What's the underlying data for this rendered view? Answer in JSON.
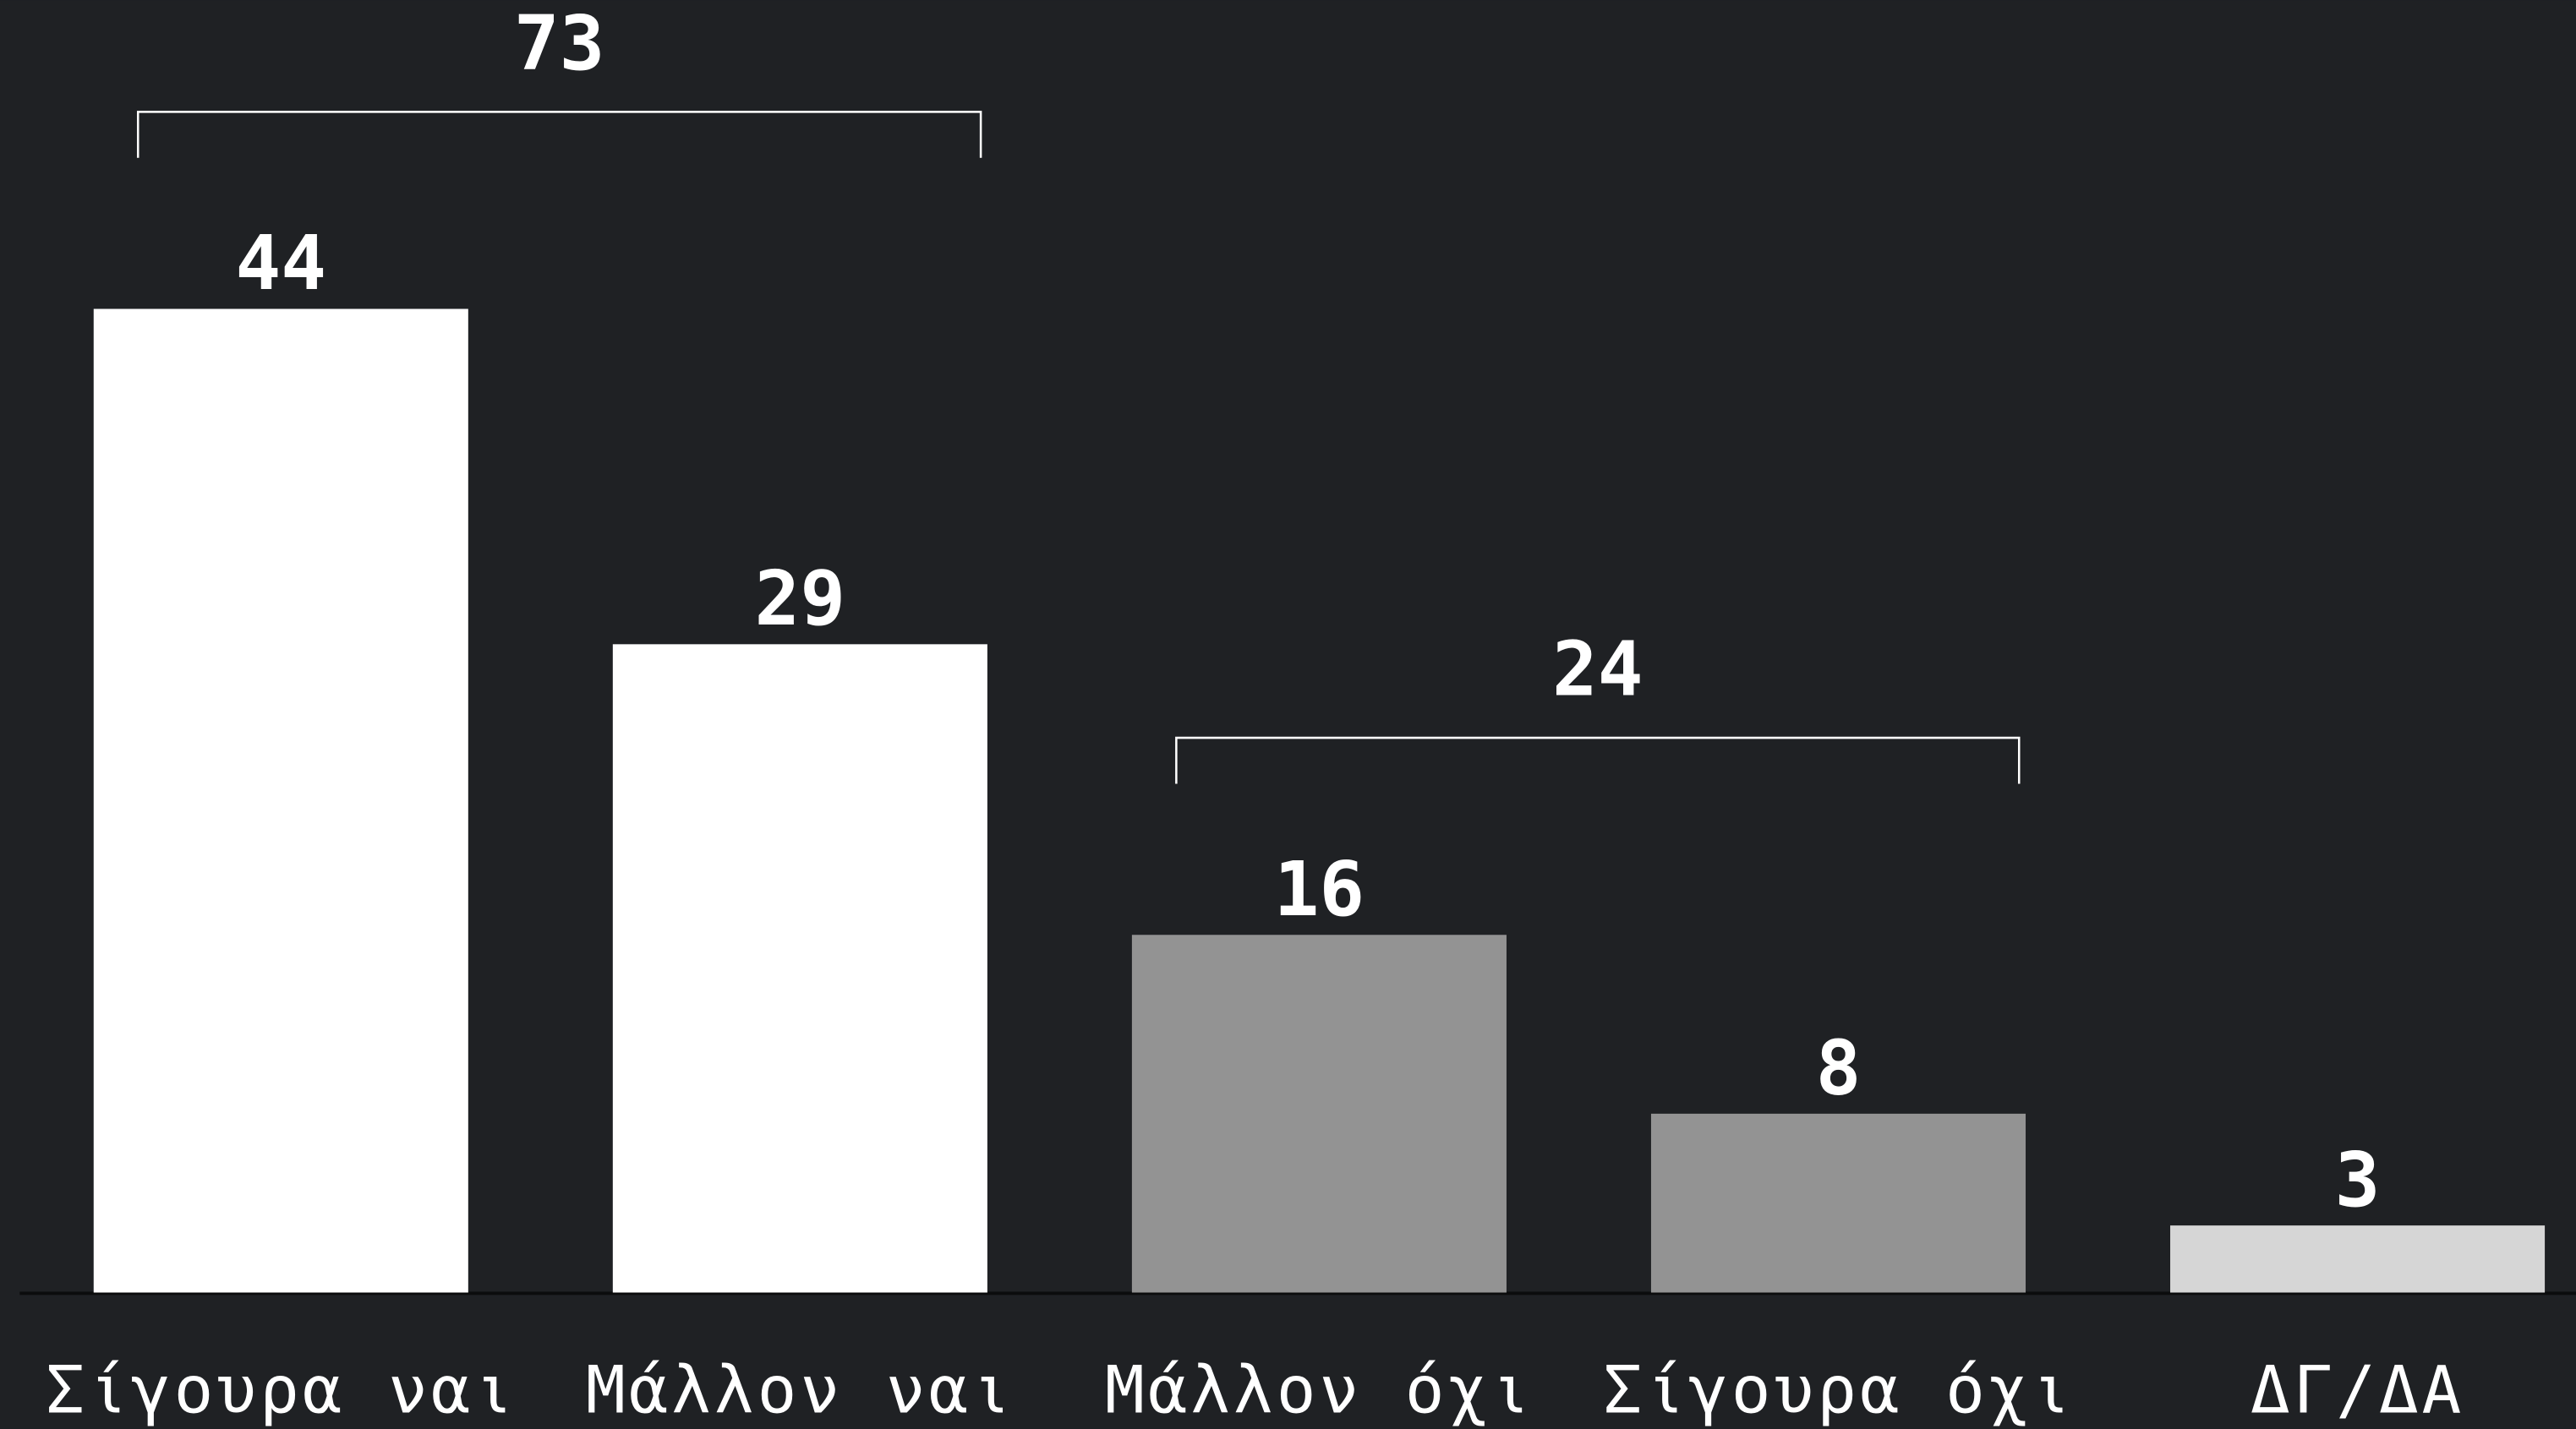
{
  "chart_data": {
    "type": "bar",
    "categories": [
      "Σίγουρα ναι",
      "Μάλλον ναι",
      "Μάλλον όχι",
      "Σίγουρα όχι",
      "ΔΓ/ΔΑ"
    ],
    "values": [
      44,
      29,
      16,
      8,
      3
    ],
    "colors": [
      "#ffffff",
      "#ffffff",
      "#939393",
      "#939393",
      "#d6d6d6"
    ],
    "groups": [
      {
        "value": 73,
        "members": [
          "Σίγουρα ναι",
          "Μάλλον ναι"
        ]
      },
      {
        "value": 24,
        "members": [
          "Μάλλον όχι",
          "Σίγουρα όχι"
        ]
      }
    ]
  }
}
